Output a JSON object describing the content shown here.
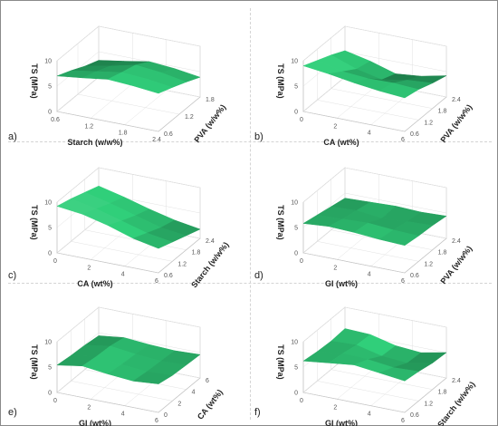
{
  "chart_data": [
    {
      "panel": "a)",
      "type": "surface",
      "zlabel": "TS (MPa)",
      "xlabel": "Starch (w/w%)",
      "ylabel": "PVA (w/w%)",
      "xticks": [
        "0.6",
        "1.2",
        "1.8",
        "2.4"
      ],
      "yticks": [
        "0.6",
        "1.2",
        "1.8"
      ],
      "zticks": [
        "0",
        "5",
        "10"
      ],
      "zlim": [
        0,
        10
      ],
      "surface_z": [
        [
          7.0,
          7.6,
          8.3,
          8.0,
          7.5
        ],
        [
          5.8,
          6.6,
          7.4,
          7.1,
          6.4
        ],
        [
          4.4,
          5.4,
          6.6,
          6.1,
          5.2
        ],
        [
          3.3,
          4.1,
          5.0,
          4.6,
          3.9
        ]
      ]
    },
    {
      "panel": "b)",
      "type": "surface",
      "zlabel": "TS (MPa)",
      "xlabel": "CA (wt%)",
      "ylabel": "PVA (w/w%)",
      "xticks": [
        "0",
        "2",
        "4",
        "6"
      ],
      "yticks": [
        "0.6",
        "1.2",
        "1.8",
        "2.4"
      ],
      "zticks": [
        "0",
        "5",
        "10"
      ],
      "zlim": [
        0,
        10
      ],
      "surface_z": [
        [
          9.0,
          8.4,
          7.6,
          7.0,
          6.6
        ],
        [
          7.8,
          6.6,
          6.2,
          6.3,
          6.0
        ],
        [
          6.6,
          4.8,
          3.7,
          4.6,
          5.0
        ],
        [
          5.2,
          4.1,
          2.6,
          3.1,
          4.2
        ]
      ]
    },
    {
      "panel": "c)",
      "type": "surface",
      "zlabel": "TS (MPa)",
      "xlabel": "CA (wt%)",
      "ylabel": "Starch (w/w%)",
      "xticks": [
        "0",
        "2",
        "4",
        "6"
      ],
      "yticks": [
        "0.6",
        "1.2",
        "1.8",
        "2.4"
      ],
      "zticks": [
        "0",
        "5",
        "10"
      ],
      "zlim": [
        0,
        10
      ],
      "surface_z": [
        [
          9.2,
          8.6,
          7.4,
          5.8,
          4.8
        ],
        [
          8.4,
          7.4,
          6.0,
          4.6,
          3.8
        ],
        [
          7.4,
          6.2,
          4.8,
          3.4,
          2.8
        ],
        [
          6.4,
          5.2,
          3.8,
          2.6,
          1.8
        ]
      ]
    },
    {
      "panel": "d)",
      "type": "surface",
      "zlabel": "TS (MPa)",
      "xlabel": "GI (wt%)",
      "ylabel": "PVA (w/w%)",
      "xticks": [
        "0",
        "2",
        "4",
        "6"
      ],
      "yticks": [
        "0.6",
        "1.2",
        "1.8",
        "2.4"
      ],
      "zticks": [
        "0",
        "5",
        "10"
      ],
      "zlim": [
        0,
        10
      ],
      "surface_z": [
        [
          5.8,
          6.2,
          6.0,
          5.6,
          5.4
        ],
        [
          5.2,
          5.4,
          5.6,
          5.2,
          5.0
        ],
        [
          4.6,
          4.8,
          4.2,
          4.6,
          4.8
        ],
        [
          4.0,
          4.2,
          4.4,
          4.2,
          4.4
        ]
      ]
    },
    {
      "panel": "e)",
      "type": "surface",
      "zlabel": "TS (MPa)",
      "xlabel": "GI (wt%)",
      "ylabel": "CA (wt%)",
      "xticks": [
        "0",
        "2",
        "4",
        "6"
      ],
      "yticks": [
        "0",
        "2",
        "4",
        "6"
      ],
      "zticks": [
        "0",
        "5",
        "10"
      ],
      "zlim": [
        0,
        10
      ],
      "surface_z": [
        [
          5.4,
          6.2,
          5.6,
          5.2,
          5.6
        ],
        [
          5.0,
          5.8,
          5.2,
          4.8,
          5.0
        ],
        [
          4.8,
          5.6,
          5.0,
          4.6,
          4.8
        ],
        [
          4.4,
          5.0,
          4.6,
          4.4,
          4.6
        ]
      ]
    },
    {
      "panel": "f)",
      "type": "surface",
      "zlabel": "TS (MPa)",
      "xlabel": "GI (wt%)",
      "ylabel": "Starch (w/w%)",
      "xticks": [
        "0",
        "2",
        "4",
        "6"
      ],
      "yticks": [
        "0.6",
        "1.2",
        "1.8",
        "2.4"
      ],
      "zticks": [
        "0",
        "5",
        "10"
      ],
      "zlim": [
        0,
        10
      ],
      "surface_z": [
        [
          6.2,
          6.8,
          7.4,
          6.8,
          6.2
        ],
        [
          5.8,
          6.4,
          6.2,
          5.6,
          5.8
        ],
        [
          5.6,
          5.8,
          4.6,
          4.2,
          5.2
        ],
        [
          5.8,
          5.6,
          4.4,
          4.0,
          5.0
        ]
      ]
    }
  ]
}
